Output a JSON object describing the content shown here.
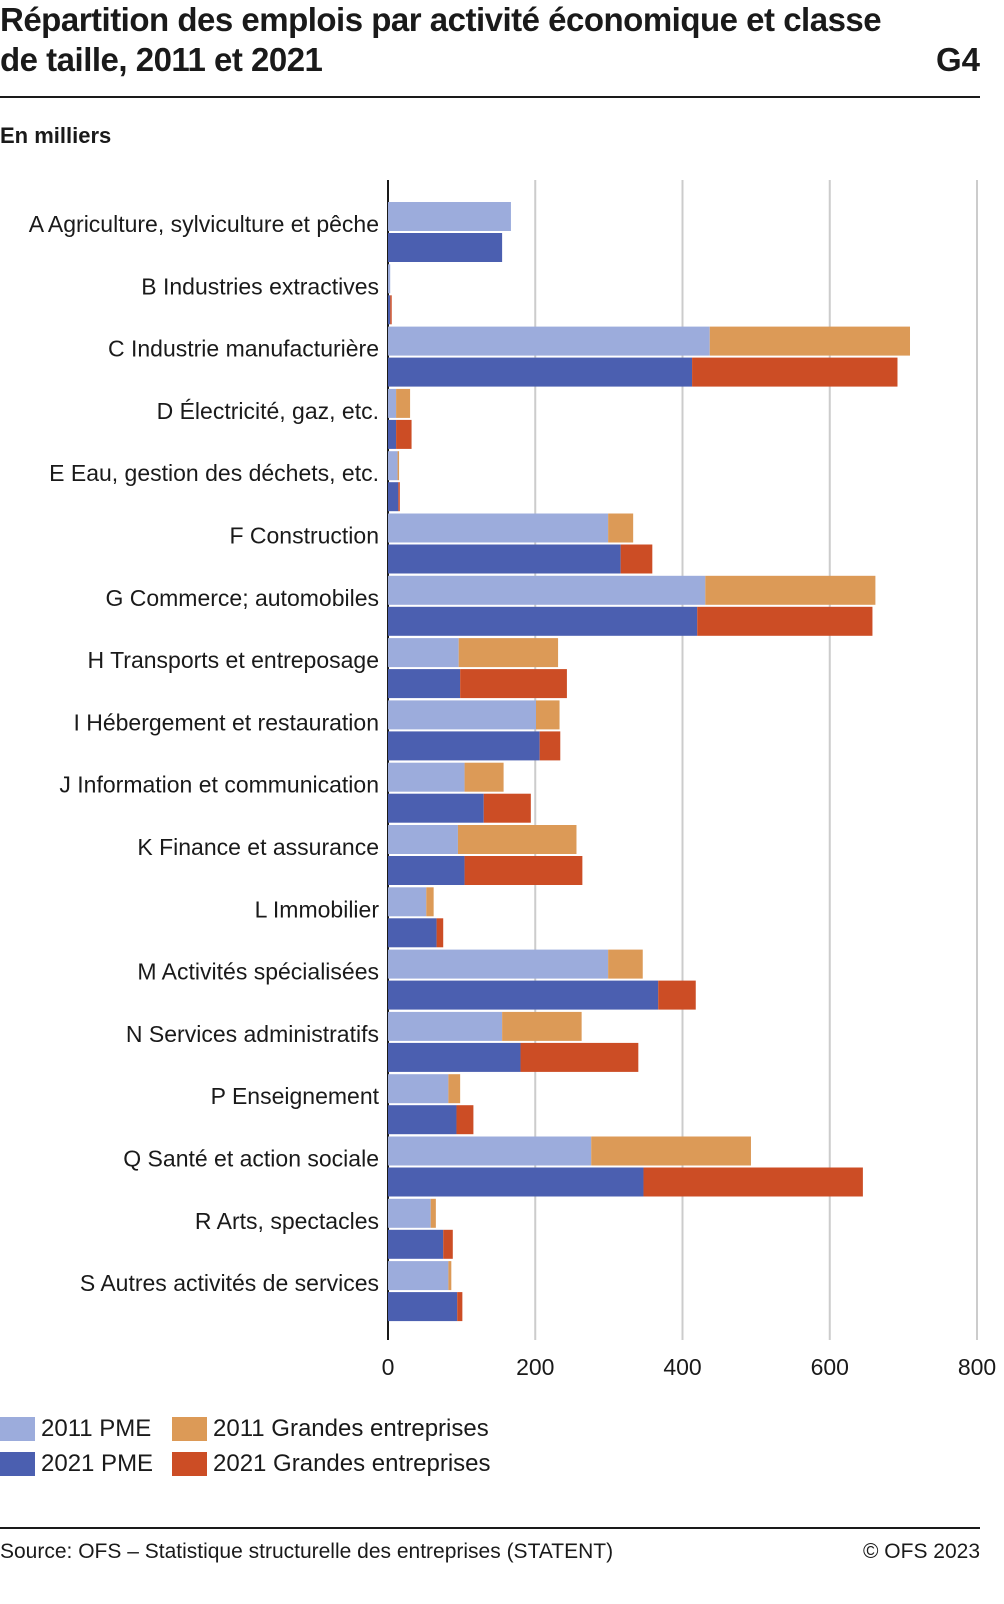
{
  "header": {
    "title": "Répartition des emplois par activité économique et classe de taille, 2011 et 2021",
    "code": "G4",
    "unit": "En milliers"
  },
  "footer": {
    "source": "Source: OFS – Statistique structurelle des entreprises (STATENT)",
    "copyright": "© OFS 2023"
  },
  "colors": {
    "pme_2011": "#9cacdc",
    "ge_2011": "#dc9a57",
    "pme_2021": "#4b5fb0",
    "ge_2021": "#cc4d25",
    "grid": "#cccccc",
    "axis": "#1a1a1a"
  },
  "chart_data": {
    "type": "bar",
    "orientation": "horizontal",
    "stacked": true,
    "categories": [
      "A Agriculture, sylviculture et pêche",
      "B Industries extractives",
      "C Industrie manufacturière",
      "D Électricité, gaz, etc.",
      "E Eau, gestion des déchets, etc.",
      "F Construction",
      "G Commerce; automobiles",
      "H Transports et entreposage",
      "I Hébergement et restauration",
      "J Information et communication",
      "K Finance et assurance",
      "L Immobilier",
      "M Activités spécialisées",
      "N Services administratifs",
      "P Enseignement",
      "Q Santé et action sociale",
      "R Arts, spectacles",
      "S Autres activités de services"
    ],
    "series": [
      {
        "name": "2011 PME",
        "year": "2011",
        "stack": "2011",
        "values": [
          167,
          3,
          437,
          11,
          13,
          299,
          431,
          96,
          201,
          104,
          95,
          52,
          299,
          155,
          82,
          276,
          58,
          82
        ]
      },
      {
        "name": "2011 Grandes entreprises",
        "year": "2011",
        "stack": "2011",
        "values": [
          0,
          0,
          272,
          19,
          1,
          34,
          231,
          135,
          32,
          53,
          161,
          10,
          47,
          108,
          16,
          217,
          7,
          4
        ]
      },
      {
        "name": "2021 PME",
        "year": "2021",
        "stack": "2021",
        "values": [
          155,
          3,
          413,
          11,
          14,
          316,
          420,
          98,
          206,
          130,
          104,
          66,
          367,
          180,
          93,
          347,
          75,
          94
        ]
      },
      {
        "name": "2021 Grandes entreprises",
        "year": "2021",
        "stack": "2021",
        "values": [
          0,
          1,
          279,
          21,
          2,
          43,
          238,
          145,
          28,
          64,
          160,
          9,
          51,
          160,
          23,
          298,
          13,
          7
        ]
      }
    ],
    "xlim": [
      0,
      800
    ],
    "xticks": [
      0,
      200,
      400,
      600,
      800
    ],
    "grid": "vertical",
    "legend_position": "bottom-left"
  }
}
